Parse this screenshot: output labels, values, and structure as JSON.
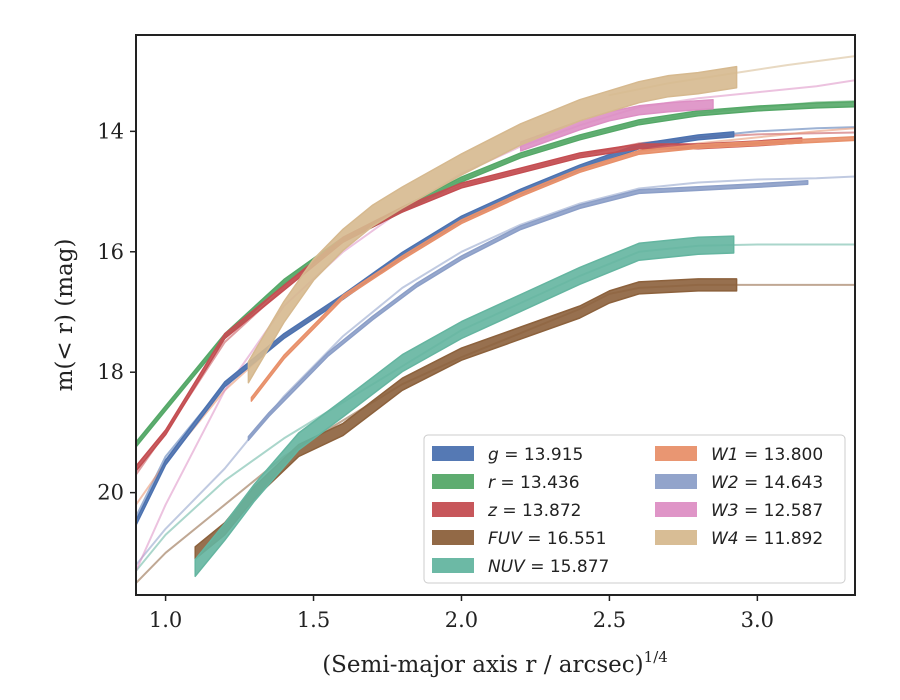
{
  "chart_data": {
    "type": "line",
    "title": "",
    "xlabel": "(Semi-major axis r / arcsec)",
    "xlabel_superscript": "1/4",
    "ylabel": "m(< r) (mag)",
    "xlim": [
      0.9,
      3.33
    ],
    "ylim": [
      21.7,
      12.4
    ],
    "y_inverted": true,
    "x_ticks": [
      1.0,
      1.5,
      2.0,
      2.5,
      3.0
    ],
    "x_tick_labels": [
      "1.0",
      "1.5",
      "2.0",
      "2.5",
      "3.0"
    ],
    "y_ticks": [
      14,
      16,
      18,
      20
    ],
    "y_tick_labels": [
      "14",
      "16",
      "18",
      "20"
    ],
    "grid": false,
    "legend_position": "bottom-right",
    "series": [
      {
        "name": "g = 13.915",
        "label_var": "g",
        "label_val": "= 13.915",
        "color": "#4c72b0",
        "fit": {
          "x": [
            0.9,
            1.0,
            1.2,
            1.4,
            1.6,
            1.8,
            2.0,
            2.2,
            2.4,
            2.6,
            2.8,
            3.0,
            3.2,
            3.33
          ],
          "y": [
            20.4,
            19.4,
            18.2,
            17.4,
            16.75,
            16.05,
            15.45,
            15.0,
            14.6,
            14.25,
            14.1,
            14.0,
            13.95,
            13.93
          ]
        },
        "data": {
          "x": [
            0.9,
            1.0,
            1.2,
            1.4,
            1.6,
            1.8,
            2.0,
            2.2,
            2.4,
            2.6,
            2.8,
            2.92
          ],
          "y": [
            20.5,
            19.5,
            18.2,
            17.4,
            16.75,
            16.05,
            15.45,
            15.0,
            14.6,
            14.25,
            14.1,
            14.05
          ],
          "width": 0.08
        }
      },
      {
        "name": "r = 13.436",
        "label_var": "r",
        "label_val": "= 13.436",
        "color": "#55a868",
        "fit": {
          "x": [
            0.9,
            1.0,
            1.2,
            1.4,
            1.6,
            1.8,
            2.0,
            2.2,
            2.4,
            2.6,
            2.8,
            3.0,
            3.2,
            3.33
          ],
          "y": [
            19.2,
            18.6,
            17.4,
            16.5,
            15.8,
            15.3,
            14.8,
            14.4,
            14.1,
            13.85,
            13.7,
            13.6,
            13.52,
            13.5
          ]
        },
        "data": {
          "x": [
            0.9,
            1.0,
            1.2,
            1.4,
            1.6,
            1.8,
            2.0,
            2.2,
            2.4,
            2.6,
            2.8,
            3.0,
            3.2,
            3.33
          ],
          "y": [
            19.2,
            18.6,
            17.4,
            16.5,
            15.8,
            15.3,
            14.8,
            14.4,
            14.1,
            13.85,
            13.7,
            13.62,
            13.57,
            13.55
          ],
          "width": 0.08
        }
      },
      {
        "name": "z = 13.872",
        "label_var": "z",
        "label_val": "= 13.872",
        "color": "#c44e52",
        "fit": {
          "x": [
            0.9,
            1.0,
            1.2,
            1.4,
            1.6,
            1.8,
            2.0,
            2.2,
            2.4,
            2.6,
            2.8,
            3.0,
            3.2,
            3.33
          ],
          "y": [
            19.7,
            19.0,
            17.5,
            16.6,
            15.8,
            15.3,
            14.9,
            14.65,
            14.4,
            14.2,
            14.1,
            14.05,
            14.03,
            14.02
          ]
        },
        "data": {
          "x": [
            0.9,
            1.0,
            1.2,
            1.4,
            1.6,
            1.8,
            2.0,
            2.2,
            2.4,
            2.6,
            2.8,
            3.0,
            3.15
          ],
          "y": [
            19.6,
            19.0,
            17.4,
            16.6,
            15.8,
            15.3,
            14.9,
            14.65,
            14.4,
            14.25,
            14.25,
            14.2,
            14.15
          ],
          "width": 0.08
        }
      },
      {
        "name": "FUV = 16.551",
        "label_var": "FUV",
        "label_val": "= 16.551",
        "color": "#8c613c",
        "fit": {
          "x": [
            0.9,
            1.0,
            1.2,
            1.4,
            1.6,
            1.8,
            2.0,
            2.2,
            2.4,
            2.5,
            2.6,
            2.8,
            3.0,
            3.33
          ],
          "y": [
            21.5,
            21.0,
            20.2,
            19.4,
            18.8,
            18.2,
            17.75,
            17.35,
            16.95,
            16.7,
            16.6,
            16.55,
            16.55,
            16.55
          ]
        },
        "data": {
          "x": [
            1.1,
            1.2,
            1.3,
            1.45,
            1.6,
            1.8,
            2.0,
            2.2,
            2.4,
            2.5,
            2.6,
            2.8,
            2.93
          ],
          "y": [
            21.0,
            20.6,
            20.0,
            19.3,
            18.95,
            18.2,
            17.7,
            17.35,
            17.0,
            16.75,
            16.6,
            16.55,
            16.55
          ],
          "width": 0.2
        }
      },
      {
        "name": "NUV = 15.877",
        "label_var": "NUV",
        "label_val": "= 15.877",
        "color": "#64b5a0",
        "fit": {
          "x": [
            0.9,
            1.0,
            1.2,
            1.4,
            1.6,
            1.8,
            2.0,
            2.2,
            2.4,
            2.6,
            2.8,
            3.0,
            3.33
          ],
          "y": [
            21.3,
            20.7,
            19.8,
            19.1,
            18.5,
            17.9,
            17.3,
            16.85,
            16.4,
            16.0,
            15.9,
            15.88,
            15.88
          ]
        },
        "data": {
          "x": [
            1.1,
            1.2,
            1.3,
            1.45,
            1.6,
            1.8,
            2.0,
            2.2,
            2.4,
            2.6,
            2.8,
            2.92
          ],
          "y": [
            21.25,
            20.65,
            20.0,
            19.15,
            18.6,
            17.85,
            17.3,
            16.85,
            16.4,
            16.0,
            15.9,
            15.88
          ],
          "width": 0.28
        }
      },
      {
        "name": "W1 = 13.800",
        "label_var": "W1",
        "label_val": "= 13.800",
        "color": "#e8906a",
        "fit": {
          "x": [
            0.9,
            1.0,
            1.2,
            1.4,
            1.6,
            1.8,
            2.0,
            2.2,
            2.4,
            2.6,
            2.8,
            3.0,
            3.2,
            3.33
          ],
          "y": [
            20.2,
            19.5,
            18.3,
            17.4,
            16.75,
            16.1,
            15.5,
            15.05,
            14.65,
            14.35,
            14.2,
            14.1,
            14.0,
            13.95
          ]
        },
        "data": {
          "x": [
            1.29,
            1.4,
            1.5,
            1.6,
            1.8,
            2.0,
            2.2,
            2.4,
            2.6,
            2.8,
            3.0,
            3.2,
            3.33
          ],
          "y": [
            18.45,
            17.75,
            17.25,
            16.75,
            16.1,
            15.5,
            15.05,
            14.65,
            14.35,
            14.25,
            14.2,
            14.15,
            14.12
          ],
          "width": 0.06
        }
      },
      {
        "name": "W2 = 14.643",
        "label_var": "W2",
        "label_val": "= 14.643",
        "color": "#8c9fc8",
        "fit": {
          "x": [
            0.9,
            1.0,
            1.2,
            1.4,
            1.6,
            1.8,
            2.0,
            2.2,
            2.4,
            2.6,
            2.8,
            3.0,
            3.2,
            3.33
          ],
          "y": [
            21.2,
            20.6,
            19.6,
            18.4,
            17.4,
            16.6,
            16.0,
            15.55,
            15.2,
            14.95,
            14.85,
            14.8,
            14.78,
            14.75
          ]
        },
        "data": {
          "x": [
            1.28,
            1.35,
            1.45,
            1.55,
            1.7,
            1.85,
            2.0,
            2.2,
            2.4,
            2.6,
            2.8,
            3.0,
            3.17
          ],
          "y": [
            19.1,
            18.7,
            18.2,
            17.7,
            17.1,
            16.55,
            16.1,
            15.6,
            15.25,
            15.0,
            14.95,
            14.9,
            14.85
          ],
          "width": 0.06
        }
      },
      {
        "name": "W3 = 12.587",
        "label_var": "W3",
        "label_val": "= 12.587",
        "color": "#dd8fc4",
        "fit": {
          "x": [
            0.9,
            1.0,
            1.2,
            1.4,
            1.6,
            1.8,
            2.0,
            2.2,
            2.4,
            2.6,
            2.8,
            3.0,
            3.2,
            3.33
          ],
          "y": [
            21.3,
            20.2,
            18.3,
            16.9,
            16.0,
            15.3,
            14.7,
            14.25,
            13.9,
            13.6,
            13.45,
            13.35,
            13.25,
            13.15
          ]
        },
        "data": {
          "x": [
            2.2,
            2.4,
            2.5,
            2.6,
            2.7,
            2.85
          ],
          "y": [
            14.25,
            13.9,
            13.75,
            13.65,
            13.6,
            13.55
          ],
          "width": 0.15
        }
      },
      {
        "name": "W4 = 11.892",
        "label_var": "W4",
        "label_val": "= 11.892",
        "color": "#d6b98f",
        "fit": {
          "x": [
            2.5,
            2.7,
            2.9,
            3.1,
            3.33
          ],
          "y": [
            13.4,
            13.2,
            13.05,
            12.9,
            12.75
          ]
        },
        "data": {
          "x": [
            1.28,
            1.4,
            1.5,
            1.6,
            1.7,
            1.8,
            2.0,
            2.2,
            2.4,
            2.6,
            2.7,
            2.8,
            2.93
          ],
          "y": [
            18.0,
            17.0,
            16.3,
            15.8,
            15.4,
            15.1,
            14.55,
            14.05,
            13.65,
            13.35,
            13.25,
            13.2,
            13.1
          ],
          "width": 0.35
        }
      }
    ]
  }
}
